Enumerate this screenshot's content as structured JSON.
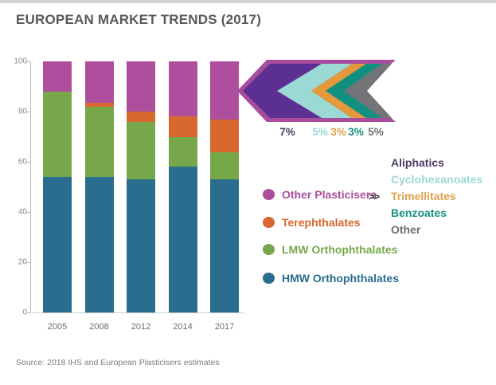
{
  "header": {
    "title": "EUROPEAN MARKET TRENDS (2017)"
  },
  "source_note": "Source: 2018 IHS and European Plasticisers estimates",
  "chart_data": {
    "type": "bar",
    "stacked": true,
    "title": "EUROPEAN MARKET TRENDS (2017)",
    "categories": [
      "2005",
      "2008",
      "2012",
      "2014",
      "2017"
    ],
    "series": [
      {
        "name": "HMW Orthophthalates",
        "color": "#2a6d8e",
        "values": [
          54,
          54,
          53,
          58,
          53
        ]
      },
      {
        "name": "LMW Orthophthalates",
        "color": "#76a84b",
        "values": [
          34,
          28,
          23,
          12,
          11
        ]
      },
      {
        "name": "Terephthalates",
        "color": "#d8682d",
        "values": [
          0,
          1.5,
          4,
          8,
          13
        ]
      },
      {
        "name": "Other Plasticisers",
        "color": "#ae4f9d",
        "values": [
          12,
          16.5,
          20,
          22,
          23
        ]
      }
    ],
    "ylim": [
      0,
      100
    ],
    "yticks": [
      0,
      20,
      40,
      60,
      80,
      100
    ],
    "grid": false,
    "legend_position": "right"
  },
  "arrow_breakdown": {
    "outline_color": "#a84d9c",
    "chevron_symbol": ">>",
    "parent_series": "Other Plasticisers",
    "segments": [
      {
        "label": "Aliphatics",
        "pct": "7%",
        "fill": "#5c2f92",
        "text_color": "#4e3a63"
      },
      {
        "label": "Cyclohexanoates",
        "pct": "5%",
        "fill": "#9bd9d4",
        "text_color": "#9bd9d4"
      },
      {
        "label": "Trimellitates",
        "pct": "3%",
        "fill": "#e3993c",
        "text_color": "#dca24e"
      },
      {
        "label": "Benzoates",
        "pct": "3%",
        "fill": "#109180",
        "text_color": "#138f7e"
      },
      {
        "label": "Other",
        "pct": "5%",
        "fill": "#737578",
        "text_color": "#6d6e71"
      }
    ]
  },
  "legend": {
    "items": [
      {
        "label": "Other Plasticisers",
        "color": "#a94f9b"
      },
      {
        "label": "Terephthalates",
        "color": "#d8662e"
      },
      {
        "label": "LMW Orthophthalates",
        "color": "#76a84b"
      },
      {
        "label": "HMW Orthophthalates",
        "color": "#2a6d8e"
      }
    ]
  }
}
